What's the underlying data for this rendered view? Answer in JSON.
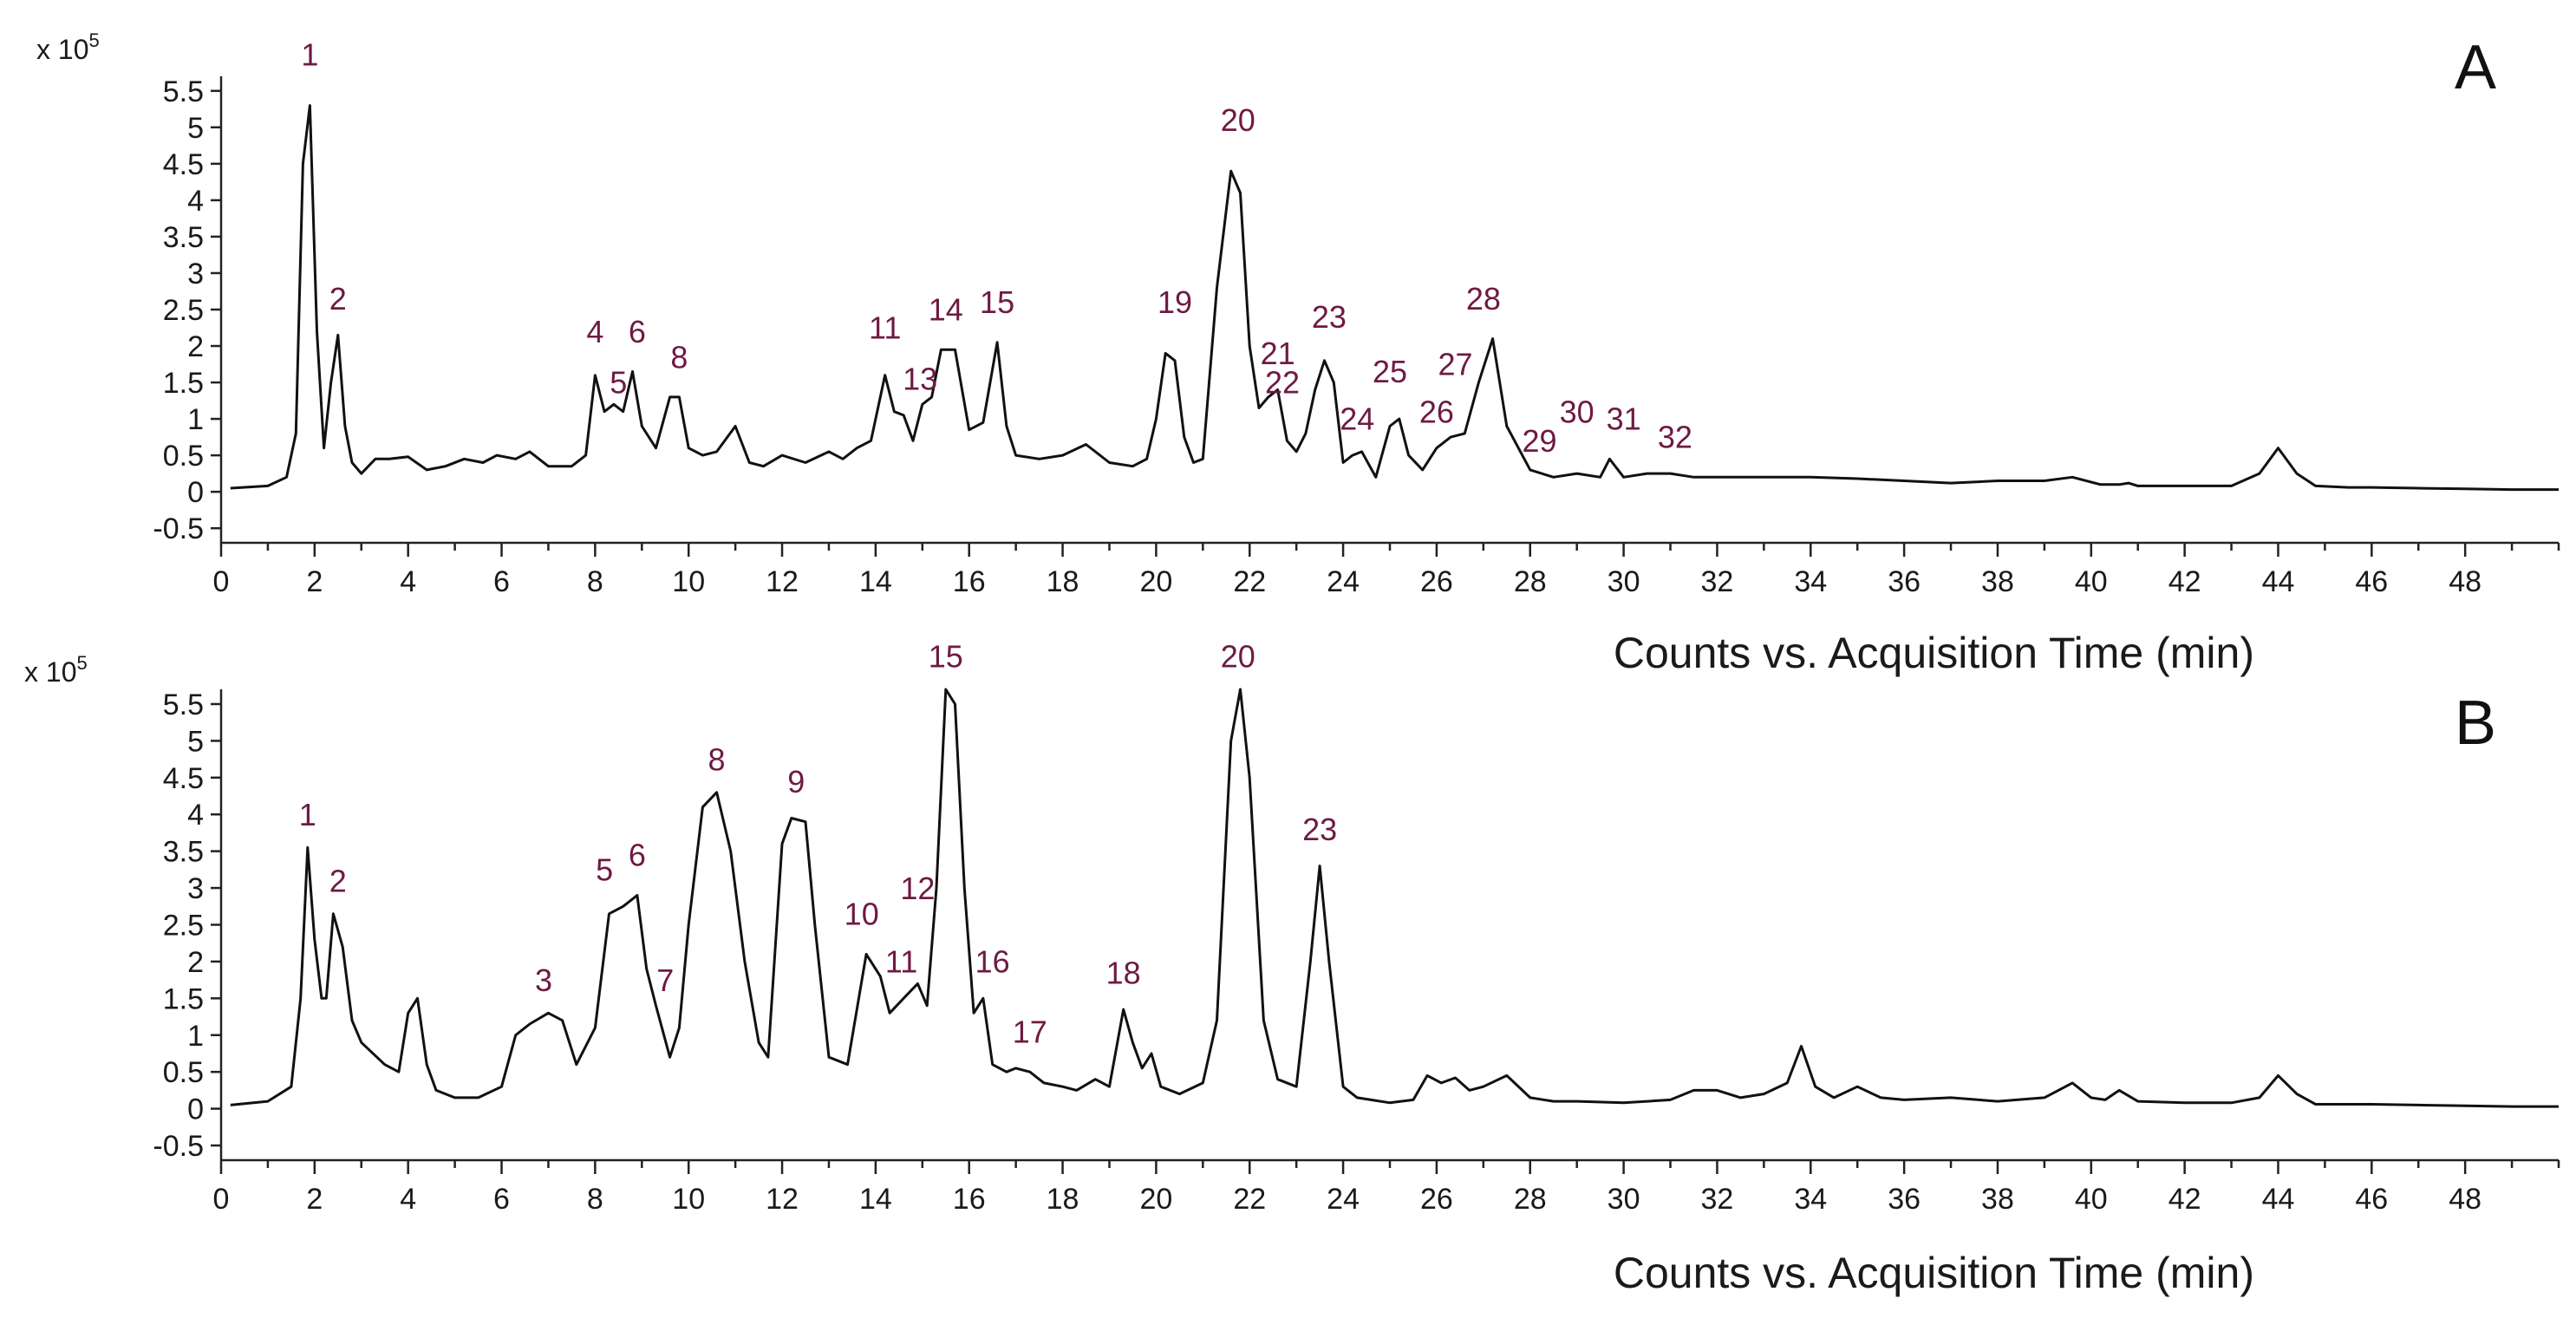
{
  "chart_data": [
    {
      "type": "line",
      "panel_label": "A",
      "xlabel": "Counts vs. Acquisition Time (min)",
      "ylabel": "",
      "y_multiplier": {
        "base": "x 10",
        "exponent": "5"
      },
      "xlim": [
        0,
        50
      ],
      "ylim": [
        -0.7,
        5.7
      ],
      "x_ticks": [
        0,
        2,
        4,
        6,
        8,
        10,
        12,
        14,
        16,
        18,
        20,
        22,
        24,
        26,
        28,
        30,
        32,
        34,
        36,
        38,
        40,
        42,
        44,
        46,
        48
      ],
      "y_ticks": [
        -0.5,
        0,
        0.5,
        1,
        1.5,
        2,
        2.5,
        3,
        3.5,
        4,
        4.5,
        5,
        5.5
      ],
      "series": [
        {
          "name": "A",
          "x": [
            0.2,
            1.0,
            1.4,
            1.6,
            1.75,
            1.9,
            2.05,
            2.2,
            2.35,
            2.5,
            2.65,
            2.8,
            3.0,
            3.3,
            3.6,
            4.0,
            4.4,
            4.8,
            5.2,
            5.6,
            5.9,
            6.3,
            6.6,
            7.0,
            7.5,
            7.8,
            8.0,
            8.2,
            8.4,
            8.6,
            8.8,
            9.0,
            9.3,
            9.6,
            9.8,
            10.0,
            10.3,
            10.6,
            11.0,
            11.3,
            11.6,
            12.0,
            12.5,
            13.0,
            13.3,
            13.6,
            13.9,
            14.2,
            14.4,
            14.6,
            14.8,
            15.0,
            15.2,
            15.4,
            15.7,
            16.0,
            16.3,
            16.6,
            16.8,
            17.0,
            17.5,
            18.0,
            18.5,
            19.0,
            19.5,
            19.8,
            20.0,
            20.2,
            20.4,
            20.6,
            20.8,
            21.0,
            21.3,
            21.6,
            21.8,
            22.0,
            22.2,
            22.4,
            22.6,
            22.8,
            23.0,
            23.2,
            23.4,
            23.6,
            23.8,
            24.0,
            24.2,
            24.4,
            24.7,
            25.0,
            25.2,
            25.4,
            25.7,
            26.0,
            26.3,
            26.6,
            26.9,
            27.2,
            27.5,
            28.0,
            28.5,
            29.0,
            29.5,
            29.7,
            30.0,
            30.5,
            31.0,
            31.5,
            32.0,
            33.0,
            34.0,
            35.0,
            36.0,
            37.0,
            38.0,
            39.0,
            39.6,
            40.2,
            40.6,
            40.8,
            41.0,
            42.0,
            43.0,
            43.6,
            44.0,
            44.4,
            44.8,
            45.5,
            46.0,
            47.0,
            48.0,
            49.0,
            50.0
          ],
          "values": [
            0.05,
            0.08,
            0.2,
            0.8,
            4.5,
            5.3,
            2.2,
            0.6,
            1.5,
            2.15,
            0.9,
            0.4,
            0.25,
            0.45,
            0.45,
            0.48,
            0.3,
            0.35,
            0.45,
            0.4,
            0.5,
            0.45,
            0.55,
            0.35,
            0.35,
            0.5,
            1.6,
            1.1,
            1.2,
            1.1,
            1.65,
            0.9,
            0.6,
            1.3,
            1.3,
            0.6,
            0.5,
            0.55,
            0.9,
            0.4,
            0.35,
            0.5,
            0.4,
            0.55,
            0.45,
            0.6,
            0.7,
            1.6,
            1.1,
            1.05,
            0.7,
            1.2,
            1.3,
            1.95,
            1.95,
            0.85,
            0.95,
            2.05,
            0.9,
            0.5,
            0.45,
            0.5,
            0.65,
            0.4,
            0.35,
            0.45,
            1.0,
            1.9,
            1.8,
            0.75,
            0.4,
            0.45,
            2.8,
            4.4,
            4.1,
            2.0,
            1.15,
            1.3,
            1.4,
            0.7,
            0.55,
            0.8,
            1.4,
            1.8,
            1.5,
            0.4,
            0.5,
            0.55,
            0.2,
            0.9,
            1.0,
            0.5,
            0.3,
            0.6,
            0.75,
            0.8,
            1.5,
            2.1,
            0.9,
            0.3,
            0.2,
            0.25,
            0.2,
            0.45,
            0.2,
            0.25,
            0.25,
            0.2,
            0.2,
            0.2,
            0.2,
            0.18,
            0.15,
            0.12,
            0.15,
            0.15,
            0.2,
            0.1,
            0.1,
            0.12,
            0.08,
            0.08,
            0.08,
            0.25,
            0.6,
            0.25,
            0.08,
            0.06,
            0.06,
            0.05,
            0.04,
            0.03,
            0.03
          ]
        }
      ],
      "annotations": [
        {
          "label": "1",
          "x": 1.9,
          "y": 5.85
        },
        {
          "label": "2",
          "x": 2.5,
          "y": 2.5
        },
        {
          "label": "4",
          "x": 8.0,
          "y": 2.05
        },
        {
          "label": "5",
          "x": 8.5,
          "y": 1.35
        },
        {
          "label": "6",
          "x": 8.9,
          "y": 2.05
        },
        {
          "label": "8",
          "x": 9.8,
          "y": 1.7
        },
        {
          "label": "11",
          "x": 14.2,
          "y": 2.1
        },
        {
          "label": "13",
          "x": 14.95,
          "y": 1.4
        },
        {
          "label": "14",
          "x": 15.5,
          "y": 2.35
        },
        {
          "label": "15",
          "x": 16.6,
          "y": 2.45
        },
        {
          "label": "19",
          "x": 20.4,
          "y": 2.45
        },
        {
          "label": "20",
          "x": 21.75,
          "y": 4.95
        },
        {
          "label": "21",
          "x": 22.6,
          "y": 1.75
        },
        {
          "label": "22",
          "x": 22.7,
          "y": 1.35
        },
        {
          "label": "23",
          "x": 23.7,
          "y": 2.25
        },
        {
          "label": "24",
          "x": 24.3,
          "y": 0.85
        },
        {
          "label": "25",
          "x": 25.0,
          "y": 1.5
        },
        {
          "label": "26",
          "x": 26.0,
          "y": 0.95
        },
        {
          "label": "27",
          "x": 26.4,
          "y": 1.6
        },
        {
          "label": "28",
          "x": 27.0,
          "y": 2.5
        },
        {
          "label": "29",
          "x": 28.2,
          "y": 0.55
        },
        {
          "label": "30",
          "x": 29.0,
          "y": 0.95
        },
        {
          "label": "31",
          "x": 30.0,
          "y": 0.85
        },
        {
          "label": "32",
          "x": 31.1,
          "y": 0.6
        }
      ]
    },
    {
      "type": "line",
      "panel_label": "B",
      "xlabel": "Counts vs. Acquisition Time (min)",
      "ylabel": "",
      "y_multiplier": {
        "base": "x 10",
        "exponent": "5"
      },
      "xlim": [
        0,
        50
      ],
      "ylim": [
        -0.7,
        5.7
      ],
      "x_ticks": [
        0,
        2,
        4,
        6,
        8,
        10,
        12,
        14,
        16,
        18,
        20,
        22,
        24,
        26,
        28,
        30,
        32,
        34,
        36,
        38,
        40,
        42,
        44,
        46,
        48
      ],
      "y_ticks": [
        -0.5,
        0,
        0.5,
        1,
        1.5,
        2,
        2.5,
        3,
        3.5,
        4,
        4.5,
        5,
        5.5
      ],
      "series": [
        {
          "name": "B",
          "x": [
            0.2,
            1.0,
            1.5,
            1.7,
            1.85,
            2.0,
            2.15,
            2.25,
            2.4,
            2.6,
            2.8,
            3.0,
            3.5,
            3.8,
            4.0,
            4.2,
            4.4,
            4.6,
            5.0,
            5.5,
            6.0,
            6.3,
            6.6,
            7.0,
            7.3,
            7.6,
            8.0,
            8.3,
            8.6,
            8.9,
            9.1,
            9.3,
            9.6,
            9.8,
            10.0,
            10.3,
            10.6,
            10.9,
            11.2,
            11.5,
            11.7,
            12.0,
            12.2,
            12.5,
            12.7,
            13.0,
            13.4,
            13.8,
            14.1,
            14.3,
            14.6,
            14.9,
            15.1,
            15.3,
            15.5,
            15.7,
            15.9,
            16.1,
            16.3,
            16.5,
            16.8,
            17.0,
            17.3,
            17.6,
            18.0,
            18.3,
            18.7,
            19.0,
            19.3,
            19.5,
            19.7,
            19.9,
            20.1,
            20.5,
            21.0,
            21.3,
            21.6,
            21.8,
            22.0,
            22.3,
            22.6,
            23.0,
            23.3,
            23.5,
            23.7,
            24.0,
            24.3,
            25.0,
            25.5,
            25.8,
            26.1,
            26.4,
            26.7,
            27.0,
            27.5,
            28.0,
            28.5,
            29.0,
            30.0,
            31.0,
            31.5,
            32.0,
            32.5,
            33.0,
            33.5,
            33.8,
            34.1,
            34.5,
            35.0,
            35.5,
            36.0,
            37.0,
            38.0,
            39.0,
            39.6,
            40.0,
            40.3,
            40.6,
            41.0,
            42.0,
            43.0,
            43.6,
            44.0,
            44.4,
            44.8,
            46.0,
            47.0,
            48.0,
            49.0,
            50.0
          ],
          "values": [
            0.05,
            0.1,
            0.3,
            1.5,
            3.55,
            2.3,
            1.5,
            1.5,
            2.65,
            2.2,
            1.2,
            0.9,
            0.6,
            0.5,
            1.3,
            1.5,
            0.6,
            0.25,
            0.15,
            0.15,
            0.3,
            1.0,
            1.15,
            1.3,
            1.2,
            0.6,
            1.1,
            2.65,
            2.75,
            2.9,
            1.9,
            1.4,
            0.7,
            1.1,
            2.5,
            4.1,
            4.3,
            3.5,
            2.0,
            0.9,
            0.7,
            3.6,
            3.95,
            3.9,
            2.5,
            0.7,
            0.6,
            2.1,
            1.8,
            1.3,
            1.5,
            1.7,
            1.4,
            3.0,
            5.7,
            5.5,
            3.0,
            1.3,
            1.5,
            0.6,
            0.5,
            0.55,
            0.5,
            0.35,
            0.3,
            0.25,
            0.4,
            0.3,
            1.35,
            0.9,
            0.55,
            0.75,
            0.3,
            0.2,
            0.35,
            1.2,
            5.0,
            5.7,
            4.5,
            1.2,
            0.4,
            0.3,
            2.0,
            3.3,
            2.0,
            0.3,
            0.15,
            0.08,
            0.12,
            0.45,
            0.35,
            0.42,
            0.25,
            0.3,
            0.45,
            0.15,
            0.1,
            0.1,
            0.08,
            0.12,
            0.25,
            0.25,
            0.15,
            0.2,
            0.35,
            0.85,
            0.3,
            0.15,
            0.3,
            0.15,
            0.12,
            0.15,
            0.1,
            0.15,
            0.35,
            0.15,
            0.12,
            0.25,
            0.1,
            0.08,
            0.08,
            0.15,
            0.45,
            0.2,
            0.06,
            0.06,
            0.05,
            0.04,
            0.03,
            0.03
          ]
        }
      ],
      "annotations": [
        {
          "label": "1",
          "x": 1.85,
          "y": 3.85
        },
        {
          "label": "2",
          "x": 2.5,
          "y": 2.95
        },
        {
          "label": "3",
          "x": 6.9,
          "y": 1.6
        },
        {
          "label": "5",
          "x": 8.2,
          "y": 3.1
        },
        {
          "label": "6",
          "x": 8.9,
          "y": 3.3
        },
        {
          "label": "7",
          "x": 9.5,
          "y": 1.6
        },
        {
          "label": "8",
          "x": 10.6,
          "y": 4.6
        },
        {
          "label": "9",
          "x": 12.3,
          "y": 4.3
        },
        {
          "label": "10",
          "x": 13.7,
          "y": 2.5
        },
        {
          "label": "11",
          "x": 14.55,
          "y": 1.85
        },
        {
          "label": "12",
          "x": 14.9,
          "y": 2.85
        },
        {
          "label": "15",
          "x": 15.5,
          "y": 6.0
        },
        {
          "label": "16",
          "x": 16.5,
          "y": 1.85
        },
        {
          "label": "17",
          "x": 17.3,
          "y": 0.9
        },
        {
          "label": "18",
          "x": 19.3,
          "y": 1.7
        },
        {
          "label": "20",
          "x": 21.75,
          "y": 6.0
        },
        {
          "label": "23",
          "x": 23.5,
          "y": 3.65
        }
      ]
    }
  ]
}
